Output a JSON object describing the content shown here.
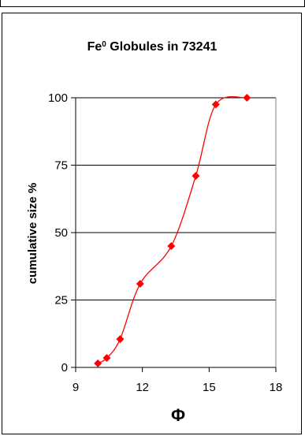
{
  "chart_data": {
    "type": "line",
    "title_main": "Fe",
    "title_sup": "0",
    "title_rest": " Globules in 73241",
    "xlabel": "Φ",
    "ylabel": "cumulative size %",
    "xlim": [
      9,
      18
    ],
    "ylim": [
      0,
      100
    ],
    "xticks": [
      "9",
      "12",
      "15",
      "18"
    ],
    "yticks": [
      "0",
      "25",
      "50",
      "75",
      "100"
    ],
    "grid": "horizontal",
    "series": [
      {
        "color": "#ff0000",
        "marker": "diamond",
        "x": [
          10.0,
          10.4,
          11.0,
          11.9,
          13.3,
          14.4,
          15.3,
          16.7
        ],
        "y": [
          1.5,
          3.5,
          10.5,
          31,
          45,
          71,
          97.5,
          100
        ]
      }
    ]
  }
}
